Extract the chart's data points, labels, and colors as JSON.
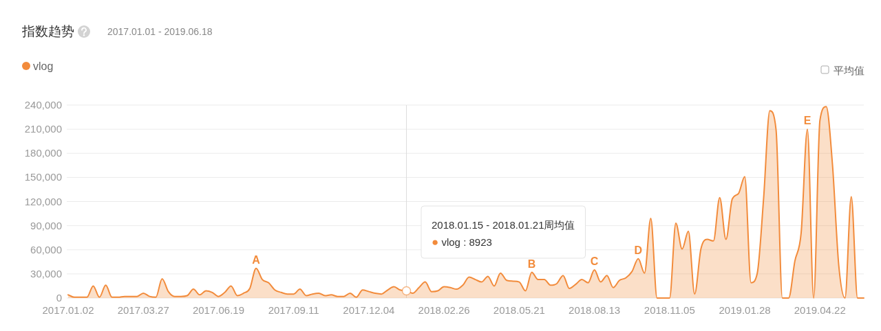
{
  "chart_data": {
    "type": "area",
    "title": "指数趋势",
    "subtitle": "2017.01.01 - 2019.06.18",
    "x": [
      "2017-01-02",
      "2017-01-09",
      "2017-01-16",
      "2017-01-23",
      "2017-01-30",
      "2017-02-06",
      "2017-02-13",
      "2017-02-20",
      "2017-02-27",
      "2017-03-06",
      "2017-03-13",
      "2017-03-20",
      "2017-03-27",
      "2017-04-03",
      "2017-04-10",
      "2017-04-17",
      "2017-04-24",
      "2017-05-01",
      "2017-05-08",
      "2017-05-15",
      "2017-05-22",
      "2017-05-29",
      "2017-06-05",
      "2017-06-12",
      "2017-06-19",
      "2017-06-26",
      "2017-07-03",
      "2017-07-10",
      "2017-07-17",
      "2017-07-24",
      "2017-07-31",
      "2017-08-07",
      "2017-08-14",
      "2017-08-21",
      "2017-08-28",
      "2017-09-04",
      "2017-09-11",
      "2017-09-18",
      "2017-09-25",
      "2017-10-02",
      "2017-10-09",
      "2017-10-16",
      "2017-10-23",
      "2017-10-30",
      "2017-11-06",
      "2017-11-13",
      "2017-11-20",
      "2017-11-27",
      "2017-12-04",
      "2017-12-11",
      "2017-12-18",
      "2017-12-25",
      "2018-01-01",
      "2018-01-08",
      "2018-01-15",
      "2018-01-22",
      "2018-01-29",
      "2018-02-05",
      "2018-02-12",
      "2018-02-19",
      "2018-02-26",
      "2018-03-05",
      "2018-03-12",
      "2018-03-19",
      "2018-03-26",
      "2018-04-02",
      "2018-04-09",
      "2018-04-16",
      "2018-04-23",
      "2018-04-30",
      "2018-05-07",
      "2018-05-14",
      "2018-05-21",
      "2018-05-28",
      "2018-06-04",
      "2018-06-11",
      "2018-06-18",
      "2018-06-25",
      "2018-07-02",
      "2018-07-09",
      "2018-07-16",
      "2018-07-23",
      "2018-07-30",
      "2018-08-06",
      "2018-08-13",
      "2018-08-20",
      "2018-08-27",
      "2018-09-03",
      "2018-09-10",
      "2018-09-17",
      "2018-09-24",
      "2018-10-01",
      "2018-10-08",
      "2018-10-15",
      "2018-10-22",
      "2018-10-29",
      "2018-11-05",
      "2018-11-12",
      "2018-11-19",
      "2018-11-26",
      "2018-12-03",
      "2018-12-10",
      "2018-12-17",
      "2018-12-24",
      "2018-12-31",
      "2019-01-07",
      "2019-01-14",
      "2019-01-21",
      "2019-01-28",
      "2019-02-04",
      "2019-02-11",
      "2019-02-18",
      "2019-02-25",
      "2019-03-04",
      "2019-03-11",
      "2019-03-18",
      "2019-03-25",
      "2019-04-01",
      "2019-04-08",
      "2019-04-15",
      "2019-04-22",
      "2019-04-29",
      "2019-05-06",
      "2019-05-13",
      "2019-05-20",
      "2019-05-27",
      "2019-06-03",
      "2019-06-10"
    ],
    "series": [
      {
        "name": "vlog",
        "color": "#f28b3b",
        "values": [
          4000,
          1000,
          1000,
          1000,
          15000,
          1000,
          16000,
          1000,
          1000,
          2000,
          2000,
          2000,
          6000,
          2000,
          1000,
          24000,
          8000,
          2000,
          2000,
          3000,
          11000,
          4000,
          9000,
          7000,
          2000,
          7000,
          15000,
          3000,
          6000,
          12000,
          37000,
          23000,
          19000,
          10000,
          7000,
          5000,
          5000,
          11000,
          3000,
          5000,
          6000,
          3000,
          4000,
          2000,
          2000,
          6000,
          1000,
          10000,
          8000,
          6000,
          5000,
          10000,
          14000,
          10000,
          8923,
          6000,
          13000,
          20000,
          8000,
          9000,
          14000,
          13000,
          11000,
          16000,
          26000,
          23000,
          20000,
          27000,
          15000,
          31000,
          22000,
          21000,
          20000,
          9000,
          32000,
          23000,
          23000,
          16000,
          18000,
          28000,
          12000,
          17000,
          23000,
          19000,
          35000,
          20000,
          28000,
          13000,
          22000,
          25000,
          33000,
          49000,
          31000,
          99000,
          0,
          0,
          0,
          93000,
          61000,
          83000,
          5000,
          61000,
          73000,
          71000,
          125000,
          73000,
          123000,
          130000,
          151000,
          19000,
          31000,
          123000,
          233000,
          209000,
          0,
          0,
          46000,
          81000,
          210000,
          0,
          221000,
          238000,
          166000,
          41000,
          0,
          126000,
          0,
          0
        ]
      }
    ],
    "xlim": [
      "2017-01-02",
      "2019-06-10"
    ],
    "xticks": [
      {
        "value": "2017-01-02",
        "label": "2017.01.02"
      },
      {
        "value": "2017-03-27",
        "label": "2017.03.27"
      },
      {
        "value": "2017-06-19",
        "label": "2017.06.19"
      },
      {
        "value": "2017-09-11",
        "label": "2017.09.11"
      },
      {
        "value": "2017-12-04",
        "label": "2017.12.04"
      },
      {
        "value": "2018-02-26",
        "label": "2018.02.26"
      },
      {
        "value": "2018-05-21",
        "label": "2018.05.21"
      },
      {
        "value": "2018-08-13",
        "label": "2018.08.13"
      },
      {
        "value": "2018-11-05",
        "label": "2018.11.05"
      },
      {
        "value": "2019-01-28",
        "label": "2019.01.28"
      },
      {
        "value": "2019-04-22",
        "label": "2019.04.22"
      }
    ],
    "ylim": [
      0,
      240000
    ],
    "yticks": [
      0,
      {
        "value": 30000,
        "label": "30,000"
      },
      {
        "value": 60000,
        "label": "60,000"
      },
      {
        "value": 90000,
        "label": "90,000"
      },
      {
        "value": 120000,
        "label": "120,000"
      },
      {
        "value": 150000,
        "label": "150,000"
      },
      {
        "value": 180000,
        "label": "180,000"
      },
      {
        "value": 210000,
        "label": "210,000"
      },
      {
        "value": 240000,
        "label": "240,000"
      }
    ],
    "grid": "y",
    "legend": "top left",
    "ref_lines": [
      {
        "axis": "x",
        "value": "2018-01-15",
        "color": "#dddddd"
      }
    ],
    "annotations": [
      {
        "text": "A",
        "x": "2017-07-31",
        "y": 37000
      },
      {
        "text": "B",
        "x": "2018-06-04",
        "y": 32000
      },
      {
        "text": "C",
        "x": "2018-08-13",
        "y": 35000
      },
      {
        "text": "D",
        "x": "2018-10-01",
        "y": 49000
      },
      {
        "text": "E",
        "x": "2019-04-08",
        "y": 210000
      },
      "2018.01.15 - 2018.01.21周均值\n● vlog : 8923",
      "平均值"
    ]
  }
}
